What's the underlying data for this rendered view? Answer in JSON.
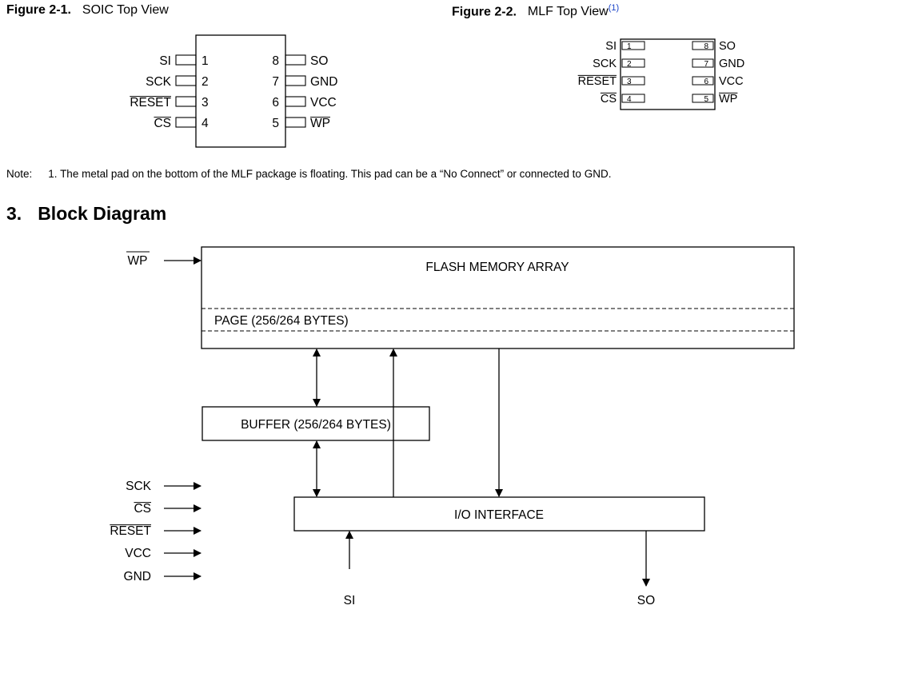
{
  "figure1": {
    "label": "Figure 2-1.",
    "title": "SOIC Top View"
  },
  "figure2": {
    "label": "Figure 2-2.",
    "title": "MLF Top View",
    "sup": "(1)"
  },
  "pins": {
    "left": [
      {
        "num": "1",
        "name": "SI",
        "overbar": false
      },
      {
        "num": "2",
        "name": "SCK",
        "overbar": false
      },
      {
        "num": "3",
        "name": "RESET",
        "overbar": true
      },
      {
        "num": "4",
        "name": "CS",
        "overbar": true
      }
    ],
    "right": [
      {
        "num": "8",
        "name": "SO",
        "overbar": false
      },
      {
        "num": "7",
        "name": "GND",
        "overbar": false
      },
      {
        "num": "6",
        "name": "VCC",
        "overbar": false
      },
      {
        "num": "5",
        "name": "WP",
        "overbar": true
      }
    ]
  },
  "note": {
    "label": "Note:",
    "number": "1.",
    "text": "The metal pad on the bottom of the MLF package is floating. This pad can be a “No Connect” or connected to GND."
  },
  "section": {
    "number": "3.",
    "title": "Block Diagram"
  },
  "block": {
    "array_label": "FLASH MEMORY ARRAY",
    "page_label": "PAGE (256/264 BYTES)",
    "buffer_label": "BUFFER (256/264 BYTES)",
    "io_label": "I/O INTERFACE",
    "wp_label": "WP",
    "inputs": [
      {
        "name": "SCK",
        "overbar": false
      },
      {
        "name": "CS",
        "overbar": true
      },
      {
        "name": "RESET",
        "overbar": true
      },
      {
        "name": "VCC",
        "overbar": false
      },
      {
        "name": "GND",
        "overbar": false
      }
    ],
    "si_label": "SI",
    "so_label": "SO"
  }
}
